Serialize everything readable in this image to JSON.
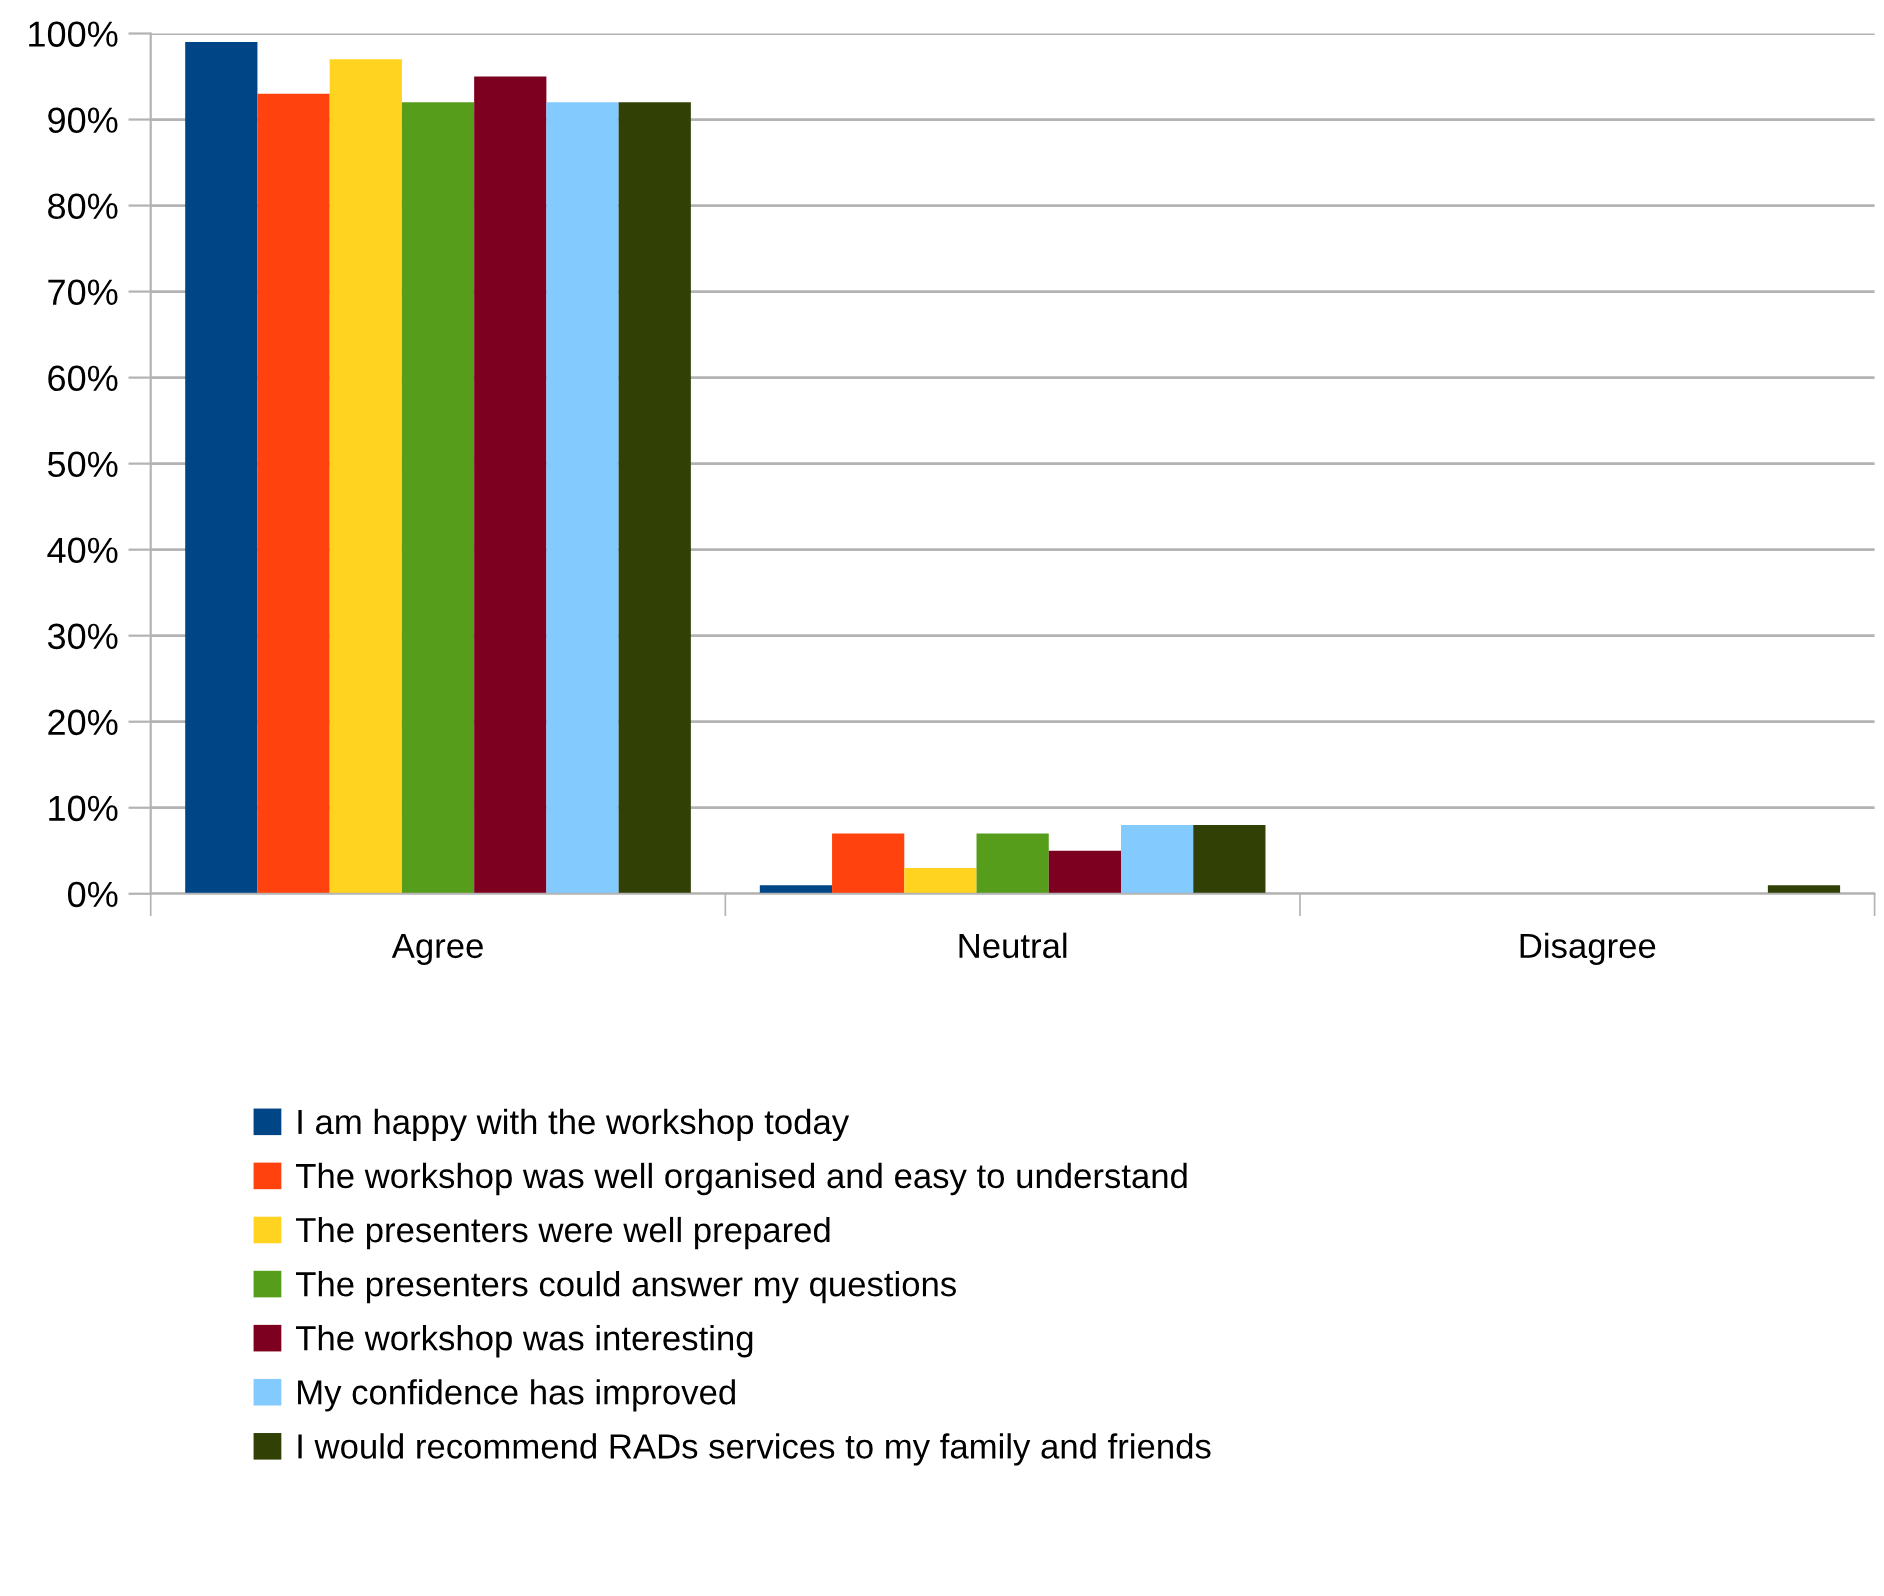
{
  "chart_data": {
    "type": "bar",
    "categories": [
      "Agree",
      "Neutral",
      "Disagree"
    ],
    "series": [
      {
        "name": "I am happy with the workshop today",
        "color": "#004586",
        "values": [
          99,
          1,
          0
        ]
      },
      {
        "name": "The workshop was well organised and easy to understand",
        "color": "#ff420e",
        "values": [
          93,
          7,
          0
        ]
      },
      {
        "name": "The presenters were well prepared",
        "color": "#ffd320",
        "values": [
          97,
          3,
          0
        ]
      },
      {
        "name": "The presenters could answer my questions",
        "color": "#579d1c",
        "values": [
          92,
          7,
          0
        ]
      },
      {
        "name": "The workshop was interesting",
        "color": "#7e0021",
        "values": [
          95,
          5,
          0
        ]
      },
      {
        "name": "My confidence has improved",
        "color": "#83caff",
        "values": [
          92,
          8,
          0
        ]
      },
      {
        "name": "I would recommend RADs services to my family and friends",
        "color": "#314004",
        "values": [
          92,
          8,
          1
        ]
      }
    ],
    "ylim": [
      0,
      100
    ],
    "yticks": [
      {
        "value": 0,
        "label": "0%"
      },
      {
        "value": 10,
        "label": "10%"
      },
      {
        "value": 20,
        "label": "20%"
      },
      {
        "value": 30,
        "label": "30%"
      },
      {
        "value": 40,
        "label": "40%"
      },
      {
        "value": 50,
        "label": "50%"
      },
      {
        "value": 60,
        "label": "60%"
      },
      {
        "value": 70,
        "label": "70%"
      },
      {
        "value": 80,
        "label": "80%"
      },
      {
        "value": 90,
        "label": "90%"
      },
      {
        "value": 100,
        "label": "100%"
      }
    ],
    "grid": "y",
    "legend": "bottom"
  }
}
